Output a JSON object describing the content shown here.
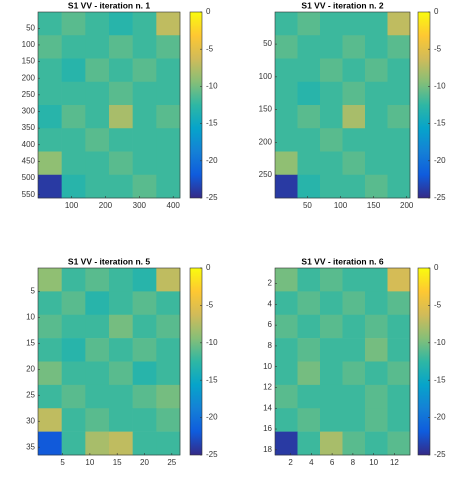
{
  "chart_data": [
    {
      "type": "heatmap",
      "title": "S1 VV - iteration n. 1",
      "xlim": [
        1,
        420
      ],
      "ylim": [
        1,
        560
      ],
      "xticks": [
        100,
        200,
        300,
        400
      ],
      "yticks": [
        50,
        100,
        150,
        200,
        250,
        300,
        350,
        400,
        450,
        500,
        550
      ],
      "zlim": [
        -25,
        0
      ],
      "zticks": [
        0,
        -5,
        -10,
        -15,
        -20,
        -25
      ],
      "colormap": [
        "#352a87",
        "#0f5cdd",
        "#1481d6",
        "#06a4ca",
        "#2eb7a4",
        "#87bf77",
        "#d1bb59",
        "#fec832",
        "#f9fb0e"
      ],
      "values": [
        [
          -12,
          -11,
          -12,
          -13,
          -12,
          -7
        ],
        [
          -11,
          -12,
          -12,
          -11,
          -12,
          -11
        ],
        [
          -12,
          -13,
          -11,
          -12,
          -11,
          -12
        ],
        [
          -12,
          -12,
          -12,
          -11,
          -12,
          -12
        ],
        [
          -13,
          -11,
          -12,
          -8,
          -12,
          -11
        ],
        [
          -12,
          -12,
          -11,
          -12,
          -12,
          -12
        ],
        [
          -9,
          -12,
          -12,
          -11,
          -12,
          -12
        ],
        [
          -24,
          -13,
          -12,
          -12,
          -11,
          -12
        ]
      ]
    },
    {
      "type": "heatmap",
      "title": "S1 VV - iteration n. 2",
      "xlim": [
        1,
        205
      ],
      "ylim": [
        1,
        285
      ],
      "xticks": [
        50,
        100,
        150,
        200
      ],
      "yticks": [
        50,
        100,
        150,
        200,
        250
      ],
      "zlim": [
        -25,
        0
      ],
      "zticks": [
        0,
        -5,
        -10,
        -15,
        -20,
        -25
      ],
      "colormap": [
        "#352a87",
        "#0f5cdd",
        "#1481d6",
        "#06a4ca",
        "#2eb7a4",
        "#87bf77",
        "#d1bb59",
        "#fec832",
        "#f9fb0e"
      ],
      "values": [
        [
          -12,
          -11,
          -12,
          -12,
          -12,
          -7
        ],
        [
          -11,
          -12,
          -12,
          -11,
          -12,
          -11
        ],
        [
          -12,
          -12,
          -11,
          -12,
          -11,
          -12
        ],
        [
          -12,
          -13,
          -12,
          -11,
          -12,
          -12
        ],
        [
          -12,
          -11,
          -12,
          -8,
          -12,
          -11
        ],
        [
          -12,
          -12,
          -11,
          -12,
          -12,
          -12
        ],
        [
          -9,
          -12,
          -12,
          -11,
          -12,
          -12
        ],
        [
          -24,
          -13,
          -12,
          -12,
          -11,
          -12
        ]
      ]
    },
    {
      "type": "heatmap",
      "title": "S1 VV - iteration n. 5",
      "xlim": [
        0.5,
        26.5
      ],
      "ylim": [
        0.5,
        36.5
      ],
      "xticks": [
        5,
        10,
        15,
        20,
        25
      ],
      "yticks": [
        5,
        10,
        15,
        20,
        25,
        30,
        35
      ],
      "zlim": [
        -25,
        0
      ],
      "zticks": [
        0,
        -5,
        -10,
        -15,
        -20,
        -25
      ],
      "colormap": [
        "#352a87",
        "#0f5cdd",
        "#1481d6",
        "#06a4ca",
        "#2eb7a4",
        "#87bf77",
        "#d1bb59",
        "#fec832",
        "#f9fb0e"
      ],
      "values": [
        [
          -9,
          -12,
          -11,
          -12,
          -13,
          -7
        ],
        [
          -12,
          -11,
          -13,
          -12,
          -11,
          -12
        ],
        [
          -11,
          -12,
          -12,
          -10,
          -12,
          -11
        ],
        [
          -12,
          -13,
          -11,
          -12,
          -11,
          -12
        ],
        [
          -10,
          -12,
          -12,
          -11,
          -13,
          -12
        ],
        [
          -12,
          -11,
          -12,
          -12,
          -11,
          -10
        ],
        [
          -7,
          -12,
          -11,
          -12,
          -12,
          -11
        ],
        [
          -22,
          -12,
          -8,
          -7,
          -12,
          -12
        ]
      ]
    },
    {
      "type": "heatmap",
      "title": "S1 VV - iteration n. 6",
      "xlim": [
        0.5,
        13.5
      ],
      "ylim": [
        0.5,
        18.5
      ],
      "xticks": [
        2,
        4,
        6,
        8,
        10,
        12
      ],
      "yticks": [
        2,
        4,
        6,
        8,
        10,
        12,
        14,
        16,
        18
      ],
      "zlim": [
        -25,
        0
      ],
      "zticks": [
        0,
        -5,
        -10,
        -15,
        -20,
        -25
      ],
      "colormap": [
        "#352a87",
        "#0f5cdd",
        "#1481d6",
        "#06a4ca",
        "#2eb7a4",
        "#87bf77",
        "#d1bb59",
        "#fec832",
        "#f9fb0e"
      ],
      "values": [
        [
          -10,
          -12,
          -11,
          -12,
          -12,
          -6
        ],
        [
          -12,
          -11,
          -12,
          -11,
          -12,
          -11
        ],
        [
          -11,
          -12,
          -11,
          -12,
          -11,
          -12
        ],
        [
          -12,
          -11,
          -12,
          -12,
          -10,
          -12
        ],
        [
          -12,
          -10,
          -12,
          -11,
          -12,
          -11
        ],
        [
          -11,
          -12,
          -12,
          -12,
          -11,
          -12
        ],
        [
          -12,
          -11,
          -12,
          -12,
          -11,
          -12
        ],
        [
          -24,
          -12,
          -8,
          -11,
          -12,
          -11
        ]
      ]
    }
  ]
}
